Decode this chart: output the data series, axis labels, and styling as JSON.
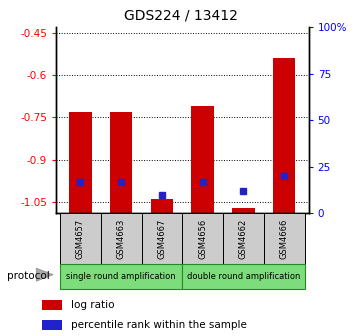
{
  "title": "GDS224 / 13412",
  "samples": [
    "GSM4657",
    "GSM4663",
    "GSM4667",
    "GSM4656",
    "GSM4662",
    "GSM4666"
  ],
  "log_ratios": [
    -0.73,
    -0.73,
    -1.04,
    -0.71,
    -1.07,
    -0.54
  ],
  "percentile_ranks": [
    17,
    17,
    10,
    17,
    12,
    20
  ],
  "ylim_left": [
    -1.09,
    -0.43
  ],
  "yticks_left": [
    -1.05,
    -0.9,
    -0.75,
    -0.6,
    -0.45
  ],
  "ytick_right_vals": [
    0,
    25,
    50,
    75,
    100
  ],
  "bar_color": "#cc0000",
  "percentile_color": "#2222cc",
  "bar_width": 0.55,
  "protocol_color": "#7ddd7d",
  "protocol_border_color": "#228B22",
  "sample_bg_color": "#cccccc",
  "grid_color": "black",
  "grid_linestyle": "dotted"
}
